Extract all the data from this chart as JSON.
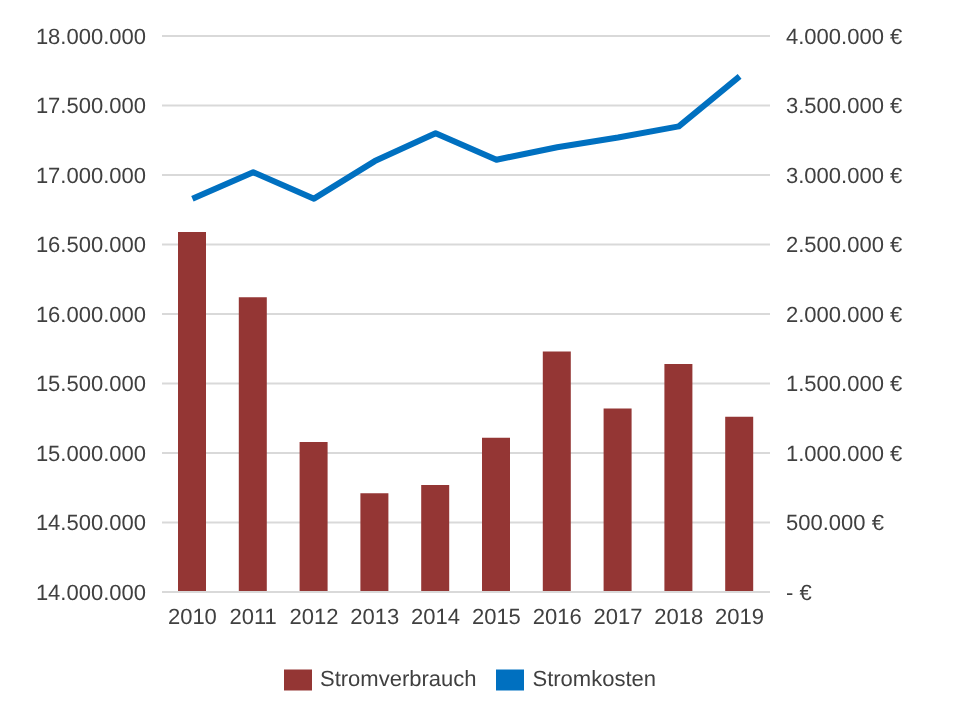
{
  "chart_data": {
    "type": "bar",
    "categories": [
      "2010",
      "2011",
      "2012",
      "2013",
      "2014",
      "2015",
      "2016",
      "2017",
      "2018",
      "2019"
    ],
    "series": [
      {
        "name": "Stromverbrauch",
        "color": "#943634",
        "values": [
          16590000,
          16120000,
          15080000,
          14710000,
          14770000,
          15110000,
          15730000,
          15320000,
          15640000,
          15260000
        ]
      },
      {
        "name": "Stromkosten",
        "type": "line",
        "axis": "y2",
        "color": "#0070c0",
        "values": [
          2830000,
          3020000,
          2830000,
          3100000,
          3300000,
          3110000,
          3200000,
          3270000,
          3350000,
          3710000
        ]
      }
    ],
    "ylim": [
      14000000,
      18000000
    ],
    "yticks": [
      {
        "value": 14000000,
        "label": "14.000.000"
      },
      {
        "value": 14500000,
        "label": "14.500.000"
      },
      {
        "value": 15000000,
        "label": "15.000.000"
      },
      {
        "value": 15500000,
        "label": "15.500.000"
      },
      {
        "value": 16000000,
        "label": "16.000.000"
      },
      {
        "value": 16500000,
        "label": "16.500.000"
      },
      {
        "value": 17000000,
        "label": "17.000.000"
      },
      {
        "value": 17500000,
        "label": "17.500.000"
      },
      {
        "value": 18000000,
        "label": "18.000.000"
      }
    ],
    "y2lim": [
      0,
      4000000
    ],
    "y2ticks": [
      {
        "value": 0,
        "label": "-   €"
      },
      {
        "value": 500000,
        "label": "500.000 €"
      },
      {
        "value": 1000000,
        "label": "1.000.000 €"
      },
      {
        "value": 1500000,
        "label": "1.500.000 €"
      },
      {
        "value": 2000000,
        "label": "2.000.000 €"
      },
      {
        "value": 2500000,
        "label": "2.500.000 €"
      },
      {
        "value": 3000000,
        "label": "3.000.000 €"
      },
      {
        "value": 3500000,
        "label": "3.500.000 €"
      },
      {
        "value": 4000000,
        "label": "4.000.000 €"
      }
    ],
    "grid": "y",
    "legend": "bottom",
    "marker": "none",
    "line_style": "solid"
  }
}
